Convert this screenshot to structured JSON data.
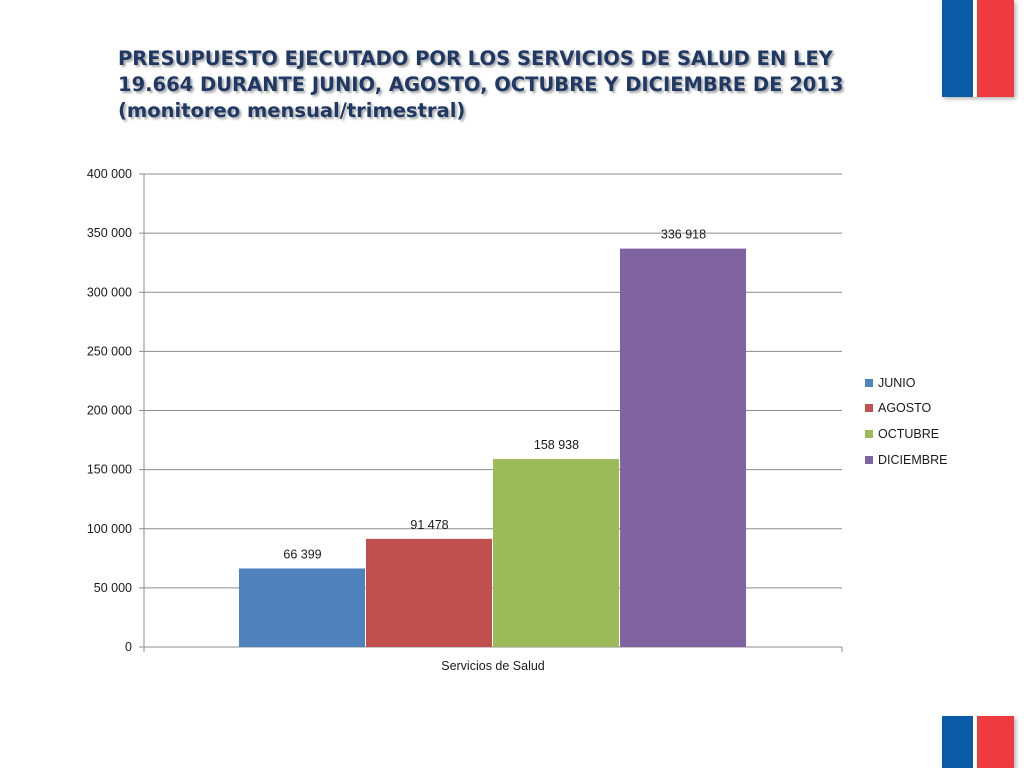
{
  "title": "PRESUPUESTO EJECUTADO POR LOS SERVICIOS DE SALUD EN LEY 19.664 DURANTE JUNIO, AGOSTO, OCTUBRE Y DICIEMBRE DE 2013 (monitoreo mensual/trimestral)",
  "colors": {
    "title": "#1f3864",
    "flag_blue": "#0a5aa8",
    "flag_red": "#ee3b3f",
    "grid": "#8c8c8c"
  },
  "chart_data": {
    "type": "bar",
    "title": "",
    "xlabel": "",
    "ylabel": "",
    "categories": [
      "Servicios de Salud"
    ],
    "ylim": [
      0,
      400000
    ],
    "yticks": [
      0,
      50000,
      100000,
      150000,
      200000,
      250000,
      300000,
      350000,
      400000
    ],
    "ytick_labels": [
      "0",
      "50 000",
      "100 000",
      "150 000",
      "200 000",
      "250 000",
      "300 000",
      "350 000",
      "400 000"
    ],
    "grid": true,
    "legend_position": "right",
    "series": [
      {
        "name": "JUNIO",
        "values": [
          66399
        ],
        "label": "66 399",
        "color": "#4f81bd"
      },
      {
        "name": "AGOSTO",
        "values": [
          91478
        ],
        "label": "91 478",
        "color": "#c0504d"
      },
      {
        "name": "OCTUBRE",
        "values": [
          158938
        ],
        "label": "158 938",
        "color": "#9bbb59"
      },
      {
        "name": "DICIEMBRE",
        "values": [
          336918
        ],
        "label": "336 918",
        "color": "#8064a2"
      }
    ]
  }
}
